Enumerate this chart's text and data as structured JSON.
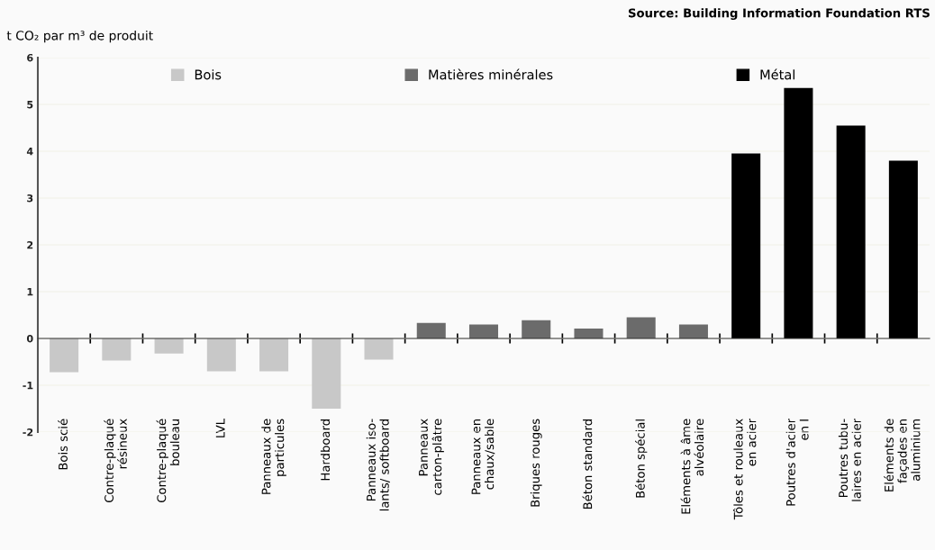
{
  "chart_data": {
    "type": "bar",
    "ylabel": "t CO₂ par m³ de produit",
    "annotations": [
      "Source: Building Information Foundation RTS"
    ],
    "categories": [
      "Bois scié",
      "Contre-plaqué\nrésineux",
      "Contre-plaqué\nbouleau",
      "LVL",
      "Panneaux de\nparticules",
      "Hardboard",
      "Panneaux iso-\nlants/ softboard",
      "Panneaux\ncarton-plâtre",
      "Panneaux en\nchaux/sable",
      "Briques rouges",
      "Béton standard",
      "Béton spécial",
      "Eléments à âme\nalvéolaire",
      "Tôles et rouleaux\nen acier",
      "Poutres d'acier\nen I",
      "Poutres tubu-\nlaires en acier",
      "Eléments de\nfaçades en\naluminium"
    ],
    "series": [
      {
        "name": "Bois",
        "color": "#c8c8c8",
        "values": [
          -0.72,
          -0.47,
          -0.32,
          -0.7,
          -0.7,
          -1.5,
          -0.45,
          null,
          null,
          null,
          null,
          null,
          null,
          null,
          null,
          null,
          null
        ]
      },
      {
        "name": "Matières minérales",
        "color": "#6b6b6b",
        "values": [
          null,
          null,
          null,
          null,
          null,
          null,
          null,
          0.33,
          0.3,
          0.39,
          0.21,
          0.45,
          0.3,
          null,
          null,
          null,
          null
        ]
      },
      {
        "name": "Métal",
        "color": "#000000",
        "values": [
          null,
          null,
          null,
          null,
          null,
          null,
          null,
          null,
          null,
          null,
          null,
          null,
          null,
          3.95,
          5.35,
          4.55,
          3.8
        ]
      }
    ],
    "ylim": [
      -2,
      6
    ],
    "yticks": [
      -2,
      -1,
      0,
      1,
      2,
      3,
      4,
      5,
      6
    ],
    "grid": "y",
    "legend": "top"
  }
}
